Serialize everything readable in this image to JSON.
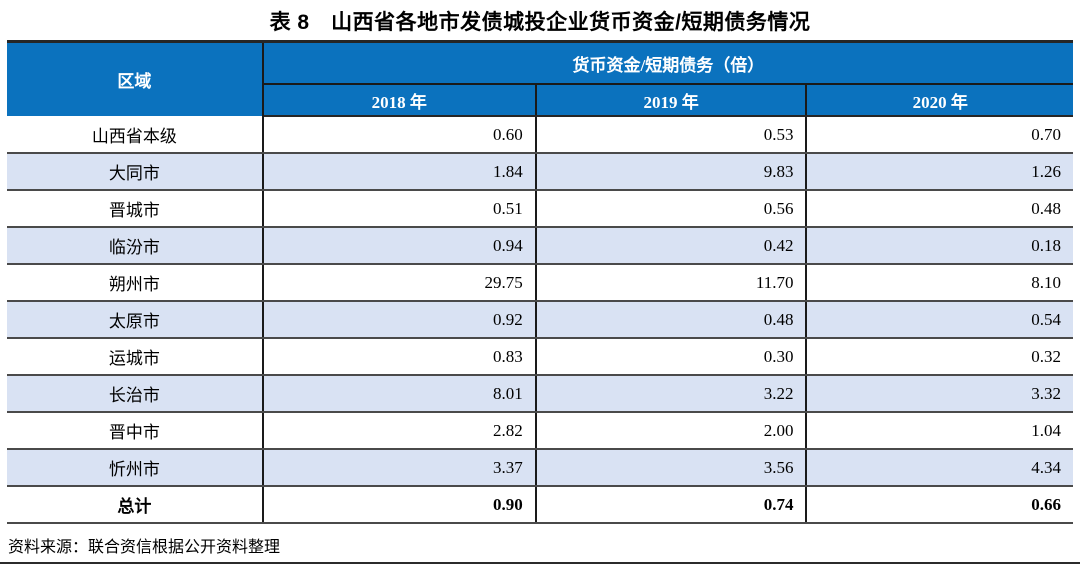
{
  "title": "表 8　山西省各地市发债城投企业货币资金/短期债务情况",
  "table": {
    "region_header": "区域",
    "group_header": "货币资金/短期债务（倍）",
    "year_headers": [
      "2018 年",
      "2019 年",
      "2020 年"
    ],
    "rows": [
      {
        "region": "山西省本级",
        "values": [
          "0.60",
          "0.53",
          "0.70"
        ]
      },
      {
        "region": "大同市",
        "values": [
          "1.84",
          "9.83",
          "1.26"
        ]
      },
      {
        "region": "晋城市",
        "values": [
          "0.51",
          "0.56",
          "0.48"
        ]
      },
      {
        "region": "临汾市",
        "values": [
          "0.94",
          "0.42",
          "0.18"
        ]
      },
      {
        "region": "朔州市",
        "values": [
          "29.75",
          "11.70",
          "8.10"
        ]
      },
      {
        "region": "太原市",
        "values": [
          "0.92",
          "0.48",
          "0.54"
        ]
      },
      {
        "region": "运城市",
        "values": [
          "0.83",
          "0.30",
          "0.32"
        ]
      },
      {
        "region": "长治市",
        "values": [
          "8.01",
          "3.22",
          "3.32"
        ]
      },
      {
        "region": "晋中市",
        "values": [
          "2.82",
          "2.00",
          "1.04"
        ]
      },
      {
        "region": "忻州市",
        "values": [
          "3.37",
          "3.56",
          "4.34"
        ]
      },
      {
        "region": "总计",
        "values": [
          "0.90",
          "0.74",
          "0.66"
        ]
      }
    ]
  },
  "source_note": "资料来源：联合资信根据公开资料整理",
  "colors": {
    "header_bg": "#0B72BE",
    "header_text": "#FFFFFF",
    "alt_row_bg": "#D9E2F3",
    "row_line": "#4A4A4A",
    "column_line": "#1A1A1A"
  },
  "chart_data": {
    "type": "table",
    "title": "表 8　山西省各地市发债城投企业货币资金/短期债务情况",
    "columns": [
      "区域",
      "2018 年",
      "2019 年",
      "2020 年"
    ],
    "unit": "货币资金/短期债务（倍）",
    "categories": [
      "山西省本级",
      "大同市",
      "晋城市",
      "临汾市",
      "朔州市",
      "太原市",
      "运城市",
      "长治市",
      "晋中市",
      "忻州市",
      "总计"
    ],
    "series": [
      {
        "name": "2018 年",
        "values": [
          0.6,
          1.84,
          0.51,
          0.94,
          29.75,
          0.92,
          0.83,
          8.01,
          2.82,
          3.37,
          0.9
        ]
      },
      {
        "name": "2019 年",
        "values": [
          0.53,
          9.83,
          0.56,
          0.42,
          11.7,
          0.48,
          0.3,
          3.22,
          2.0,
          3.56,
          0.74
        ]
      },
      {
        "name": "2020 年",
        "values": [
          0.7,
          1.26,
          0.48,
          0.18,
          8.1,
          0.54,
          0.32,
          3.32,
          1.04,
          4.34,
          0.66
        ]
      }
    ],
    "source": "资料来源：联合资信根据公开资料整理"
  }
}
